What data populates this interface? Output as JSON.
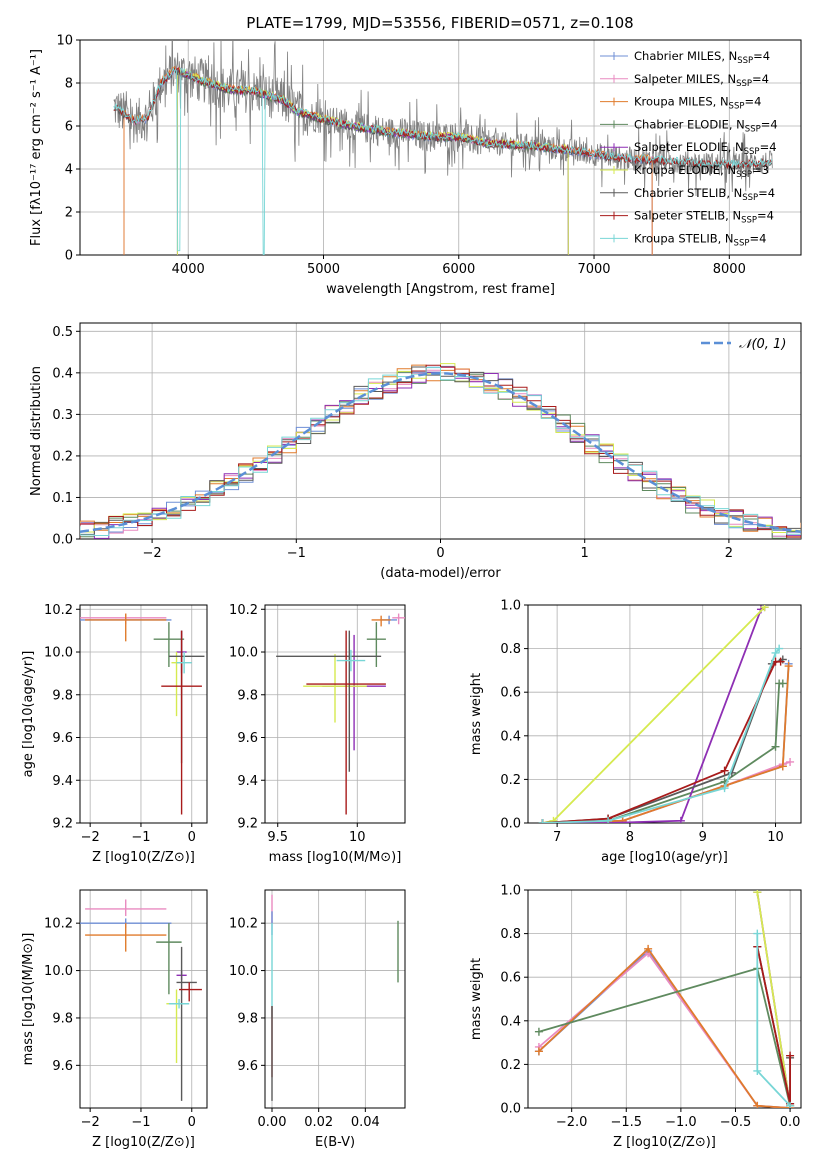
{
  "figure_title": "PLATE=1799, MJD=53556, FIBERID=0571, z=0.108",
  "colors": {
    "Chabrier MILES": "#6f8fd6",
    "Salpeter MILES": "#e98ac0",
    "Kroupa MILES": "#e07b2c",
    "Chabrier ELODIE": "#5f8a5f",
    "Salpeter ELODIE": "#8e2fb4",
    "Kroupa ELODIE": "#d6ea50",
    "Chabrier STELIB": "#5a5a5a",
    "Salpeter STELIB": "#a81b1b",
    "Kroupa STELIB": "#78d6d6"
  },
  "chart_data": [
    {
      "type": "line",
      "title": "PLATE=1799, MJD=53556, FIBERID=0571, z=0.108",
      "xlabel": "wavelength [Angstrom, rest frame]",
      "ylabel": "Flux [fλ10⁻¹⁷ erg cm⁻² s⁻¹ A⁻¹]",
      "xlim": [
        3200,
        8530
      ],
      "ylim": [
        0,
        10
      ],
      "xticks": [
        4000,
        5000,
        6000,
        7000,
        8000
      ],
      "yticks": [
        0,
        2,
        4,
        6,
        8,
        10
      ],
      "legend_position": "top-right",
      "legend": [
        {
          "name": "Chabrier MILES",
          "nssp": "4"
        },
        {
          "name": "Salpeter MILES",
          "nssp": "4"
        },
        {
          "name": "Kroupa MILES",
          "nssp": "4"
        },
        {
          "name": "Chabrier ELODIE",
          "nssp": "4"
        },
        {
          "name": "Salpeter ELODIE",
          "nssp": "4"
        },
        {
          "name": "Kroupa ELODIE",
          "nssp": "3"
        },
        {
          "name": "Chabrier STELIB",
          "nssp": "4"
        },
        {
          "name": "Salpeter STELIB",
          "nssp": "4"
        },
        {
          "name": "Kroupa STELIB",
          "nssp": "4"
        }
      ],
      "continuum": {
        "x": [
          3450,
          3600,
          3700,
          3800,
          3900,
          4000,
          4100,
          4300,
          4500,
          4700,
          4800,
          5000,
          5200,
          5500,
          5800,
          6000,
          6200,
          6500,
          6800,
          7000,
          7200,
          7500,
          7800,
          8000,
          8300
        ],
        "y": [
          6.9,
          6.2,
          6.4,
          8.0,
          8.6,
          8.4,
          8.1,
          7.7,
          7.6,
          7.2,
          6.7,
          6.3,
          6.0,
          5.7,
          5.5,
          5.5,
          5.2,
          5.1,
          4.9,
          4.7,
          4.5,
          4.4,
          4.25,
          4.2,
          4.3
        ]
      }
    },
    {
      "type": "line",
      "xlabel": "(data-model)/error",
      "ylabel": "Normed distribution",
      "xlim": [
        -2.5,
        2.5
      ],
      "ylim": [
        0,
        0.52
      ],
      "xticks": [
        -2,
        -1,
        0,
        1,
        2
      ],
      "yticks": [
        0.0,
        0.1,
        0.2,
        0.3,
        0.4,
        0.5
      ],
      "legend_position": "top-right",
      "legend": [
        "𝒩(0, 1)"
      ],
      "series": [
        {
          "name": "𝒩(0, 1)",
          "style": "dashed",
          "color": "#5b8fd6"
        }
      ]
    },
    {
      "type": "scatter",
      "xlabel": "Z [log10(Z/Z⊙)]",
      "ylabel": "age  [log10(age/yr)]",
      "xlim": [
        -2.2,
        0.3
      ],
      "ylim": [
        9.2,
        10.22
      ],
      "xticks": [
        -2,
        -1,
        0
      ],
      "yticks": [
        9.2,
        9.4,
        9.6,
        9.8,
        10.0,
        10.2
      ],
      "points": [
        {
          "model": "Chabrier MILES",
          "x": -1.3,
          "y": 10.15,
          "xerr": [
            0.9,
            0.9
          ],
          "yerr": [
            0.02,
            0.02
          ]
        },
        {
          "model": "Salpeter MILES",
          "x": -1.3,
          "y": 10.16,
          "xerr": [
            0.9,
            0.8
          ],
          "yerr": [
            0.02,
            0.02
          ]
        },
        {
          "model": "Kroupa MILES",
          "x": -1.3,
          "y": 10.15,
          "xerr": [
            0.8,
            0.8
          ],
          "yerr": [
            0.1,
            0.03
          ]
        },
        {
          "model": "Chabrier ELODIE",
          "x": -0.45,
          "y": 10.06,
          "xerr": [
            0.3,
            0.3
          ],
          "yerr": [
            0.13,
            0.08
          ]
        },
        {
          "model": "Salpeter ELODIE",
          "x": -0.2,
          "y": 10.0,
          "xerr": [
            0.1,
            0.1
          ],
          "yerr": [
            0.1,
            0.1
          ]
        },
        {
          "model": "Kroupa ELODIE",
          "x": -0.3,
          "y": 9.95,
          "xerr": [
            0.1,
            0.1
          ],
          "yerr": [
            0.25,
            0.05
          ]
        },
        {
          "model": "Chabrier STELIB",
          "x": -0.2,
          "y": 9.98,
          "xerr": [
            0.25,
            0.45
          ],
          "yerr": [
            0.5,
            0.12
          ]
        },
        {
          "model": "Salpeter STELIB",
          "x": -0.2,
          "y": 9.84,
          "xerr": [
            0.4,
            0.4
          ],
          "yerr": [
            0.6,
            0.26
          ]
        },
        {
          "model": "Kroupa STELIB",
          "x": -0.15,
          "y": 9.95,
          "xerr": [
            0.15,
            0.15
          ],
          "yerr": [
            0.05,
            0.05
          ]
        }
      ]
    },
    {
      "type": "scatter",
      "xlabel": "mass [log10(M/M⊙)]",
      "ylabel": "",
      "xlim": [
        9.42,
        10.3
      ],
      "ylim": [
        9.2,
        10.22
      ],
      "xticks": [
        9.5,
        10.0
      ],
      "yticks": [
        9.2,
        9.4,
        9.6,
        9.8,
        10.0,
        10.2
      ],
      "points": [
        {
          "model": "Chabrier MILES",
          "x": 10.2,
          "y": 10.15,
          "xerr": [
            0.05,
            0.05
          ],
          "yerr": [
            0.02,
            0.02
          ]
        },
        {
          "model": "Salpeter MILES",
          "x": 10.26,
          "y": 10.16,
          "xerr": [
            0.04,
            0.04
          ],
          "yerr": [
            0.03,
            0.02
          ]
        },
        {
          "model": "Kroupa MILES",
          "x": 10.15,
          "y": 10.15,
          "xerr": [
            0.06,
            0.06
          ],
          "yerr": [
            0.03,
            0.02
          ]
        },
        {
          "model": "Chabrier ELODIE",
          "x": 10.12,
          "y": 10.06,
          "xerr": [
            0.06,
            0.06
          ],
          "yerr": [
            0.13,
            0.08
          ]
        },
        {
          "model": "Salpeter ELODIE",
          "x": 9.98,
          "y": 9.84,
          "xerr": [
            0.2,
            0.2
          ],
          "yerr": [
            0.3,
            0.24
          ]
        },
        {
          "model": "Kroupa ELODIE",
          "x": 9.86,
          "y": 9.84,
          "xerr": [
            0.2,
            0.2
          ],
          "yerr": [
            0.17,
            0.15
          ]
        },
        {
          "model": "Chabrier STELIB",
          "x": 9.95,
          "y": 9.98,
          "xerr": [
            0.46,
            0.2
          ],
          "yerr": [
            0.54,
            0.12
          ]
        },
        {
          "model": "Salpeter STELIB",
          "x": 9.93,
          "y": 9.85,
          "xerr": [
            0.25,
            0.25
          ],
          "yerr": [
            0.61,
            0.25
          ]
        },
        {
          "model": "Kroupa STELIB",
          "x": 9.96,
          "y": 9.96,
          "xerr": [
            0.09,
            0.09
          ],
          "yerr": [
            0.05,
            0.05
          ]
        }
      ]
    },
    {
      "type": "line",
      "xlabel": "age  [log10(age/yr)]",
      "ylabel": "mass weight",
      "xlim": [
        6.6,
        10.35
      ],
      "ylim": [
        0,
        1
      ],
      "xticks": [
        7,
        8,
        9,
        10
      ],
      "yticks": [
        0.0,
        0.2,
        0.4,
        0.6,
        0.8,
        1.0
      ],
      "series": [
        {
          "name": "Chabrier MILES",
          "x": [
            6.8,
            7.9,
            9.3,
            10.1,
            10.18
          ],
          "y": [
            0.0,
            0.01,
            0.17,
            0.26,
            0.73
          ]
        },
        {
          "name": "Salpeter MILES",
          "x": [
            6.8,
            7.9,
            9.3,
            10.1,
            10.2
          ],
          "y": [
            0.0,
            0.01,
            0.17,
            0.27,
            0.28
          ]
        },
        {
          "name": "Kroupa MILES",
          "x": [
            6.8,
            7.9,
            9.3,
            10.1,
            10.18
          ],
          "y": [
            0.0,
            0.01,
            0.17,
            0.26,
            0.72
          ]
        },
        {
          "name": "Chabrier ELODIE",
          "x": [
            6.8,
            7.7,
            9.3,
            10.0,
            10.05,
            10.1
          ],
          "y": [
            0.0,
            0.01,
            0.19,
            0.35,
            0.64,
            0.64
          ]
        },
        {
          "name": "Salpeter ELODIE",
          "x": [
            6.8,
            7.7,
            8.7,
            9.8,
            9.85
          ],
          "y": [
            0.0,
            0.0,
            0.01,
            0.98,
            0.99
          ]
        },
        {
          "name": "Kroupa ELODIE",
          "x": [
            6.8,
            6.95,
            9.85
          ],
          "y": [
            0.0,
            0.01,
            0.99
          ]
        },
        {
          "name": "Chabrier STELIB",
          "x": [
            6.8,
            7.7,
            9.4,
            9.95,
            10.1
          ],
          "y": [
            0.0,
            0.02,
            0.23,
            0.73,
            0.75
          ]
        },
        {
          "name": "Salpeter STELIB",
          "x": [
            6.8,
            7.7,
            9.3,
            10.0,
            10.07
          ],
          "y": [
            0.0,
            0.02,
            0.24,
            0.74,
            0.74
          ]
        },
        {
          "name": "Kroupa STELIB",
          "x": [
            6.8,
            7.7,
            9.3,
            10.0,
            10.05
          ],
          "y": [
            0.0,
            0.01,
            0.16,
            0.78,
            0.8
          ]
        }
      ]
    },
    {
      "type": "scatter",
      "xlabel": "Z [log10(Z/Z⊙)]",
      "ylabel": "mass [log10(M/M⊙)]",
      "xlim": [
        -2.2,
        0.3
      ],
      "ylim": [
        9.42,
        10.34
      ],
      "xticks": [
        -2,
        -1,
        0
      ],
      "yticks": [
        9.6,
        9.8,
        10.0,
        10.2
      ],
      "points": [
        {
          "model": "Chabrier MILES",
          "x": -1.3,
          "y": 10.2,
          "xerr": [
            0.9,
            0.9
          ],
          "yerr": [
            0.02,
            0.02
          ]
        },
        {
          "model": "Salpeter MILES",
          "x": -1.3,
          "y": 10.26,
          "xerr": [
            0.8,
            0.8
          ],
          "yerr": [
            0.03,
            0.04
          ]
        },
        {
          "model": "Kroupa MILES",
          "x": -1.3,
          "y": 10.15,
          "xerr": [
            0.8,
            0.8
          ],
          "yerr": [
            0.07,
            0.05
          ]
        },
        {
          "model": "Chabrier ELODIE",
          "x": -0.45,
          "y": 10.12,
          "xerr": [
            0.25,
            0.25
          ],
          "yerr": [
            0.22,
            0.08
          ]
        },
        {
          "model": "Salpeter ELODIE",
          "x": -0.2,
          "y": 9.98,
          "xerr": [
            0.1,
            0.1
          ],
          "yerr": [
            0.02,
            0.02
          ]
        },
        {
          "model": "Kroupa ELODIE",
          "x": -0.3,
          "y": 9.86,
          "xerr": [
            0.2,
            0.1
          ],
          "yerr": [
            0.25,
            0.06
          ]
        },
        {
          "model": "Chabrier STELIB",
          "x": -0.2,
          "y": 9.95,
          "xerr": [
            0.1,
            0.3
          ],
          "yerr": [
            0.5,
            0.15
          ]
        },
        {
          "model": "Salpeter STELIB",
          "x": -0.05,
          "y": 9.92,
          "xerr": [
            0.2,
            0.25
          ],
          "yerr": [
            0.05,
            0.03
          ]
        },
        {
          "model": "Kroupa STELIB",
          "x": -0.25,
          "y": 9.86,
          "xerr": [
            0.2,
            0.2
          ],
          "yerr": [
            0.02,
            0.02
          ]
        }
      ]
    },
    {
      "type": "scatter",
      "xlabel": "E(B-V)",
      "ylabel": "",
      "xlim": [
        -0.003,
        0.057
      ],
      "ylim": [
        9.42,
        10.34
      ],
      "xticks": [
        0.0,
        0.02,
        0.04
      ],
      "yticks": [
        9.6,
        9.8,
        10.0,
        10.2
      ],
      "points": [
        {
          "model": "Salpeter MILES",
          "x": 0.0,
          "y": 10.26,
          "xerr": [
            0,
            0
          ],
          "yerr": [
            0.06,
            0.06
          ]
        },
        {
          "model": "Chabrier MILES",
          "x": 0.0,
          "y": 10.2,
          "xerr": [
            0,
            0
          ],
          "yerr": [
            0.05,
            0.05
          ]
        },
        {
          "model": "Kroupa STELIB",
          "x": 0.0,
          "y": 10.0,
          "xerr": [
            0,
            0
          ],
          "yerr": [
            0.2,
            0.2
          ]
        },
        {
          "model": "Salpeter STELIB",
          "x": 0.0,
          "y": 9.75,
          "xerr": [
            0,
            0
          ],
          "yerr": [
            0.2,
            0.1
          ]
        },
        {
          "model": "Chabrier STELIB",
          "x": 0.0,
          "y": 9.7,
          "xerr": [
            0,
            0
          ],
          "yerr": [
            0.25,
            0.15
          ]
        },
        {
          "model": "Chabrier ELODIE",
          "x": 0.054,
          "y": 10.08,
          "xerr": [
            0,
            0
          ],
          "yerr": [
            0.13,
            0.13
          ]
        }
      ]
    },
    {
      "type": "line",
      "xlabel": "Z [log10(Z/Z⊙)]",
      "ylabel": "mass weight",
      "xlim": [
        -2.4,
        0.1
      ],
      "ylim": [
        0,
        1
      ],
      "xticks": [
        -2.0,
        -1.5,
        -1.0,
        -0.5,
        0.0
      ],
      "yticks": [
        0.0,
        0.2,
        0.4,
        0.6,
        0.8,
        1.0
      ],
      "series": [
        {
          "name": "Chabrier MILES",
          "x": [
            -2.3,
            -1.3,
            -0.3,
            0.0
          ],
          "y": [
            0.26,
            0.72,
            0.01,
            0.0
          ]
        },
        {
          "name": "Salpeter MILES",
          "x": [
            -2.3,
            -1.3,
            -0.3,
            0.0
          ],
          "y": [
            0.28,
            0.71,
            0.01,
            0.0
          ]
        },
        {
          "name": "Kroupa MILES",
          "x": [
            -2.3,
            -1.3,
            -0.3,
            0.0
          ],
          "y": [
            0.26,
            0.73,
            0.01,
            0.0
          ]
        },
        {
          "name": "Chabrier ELODIE",
          "x": [
            -2.3,
            -0.3,
            0.0
          ],
          "y": [
            0.35,
            0.64,
            0.01
          ]
        },
        {
          "name": "Salpeter ELODIE",
          "x": [
            -0.3,
            0.0
          ],
          "y": [
            0.99,
            0.01
          ]
        },
        {
          "name": "Kroupa ELODIE",
          "x": [
            -0.3,
            0.0
          ],
          "y": [
            0.99,
            0.01
          ]
        },
        {
          "name": "Chabrier STELIB",
          "x": [
            -0.3,
            0.0,
            0.0
          ],
          "y": [
            0.74,
            0.02,
            0.23
          ]
        },
        {
          "name": "Salpeter STELIB",
          "x": [
            -0.3,
            0.0,
            0.0
          ],
          "y": [
            0.74,
            0.02,
            0.24
          ]
        },
        {
          "name": "Kroupa STELIB",
          "x": [
            -0.3,
            -0.3,
            0.0
          ],
          "y": [
            0.8,
            0.17,
            0.01
          ]
        }
      ]
    }
  ]
}
